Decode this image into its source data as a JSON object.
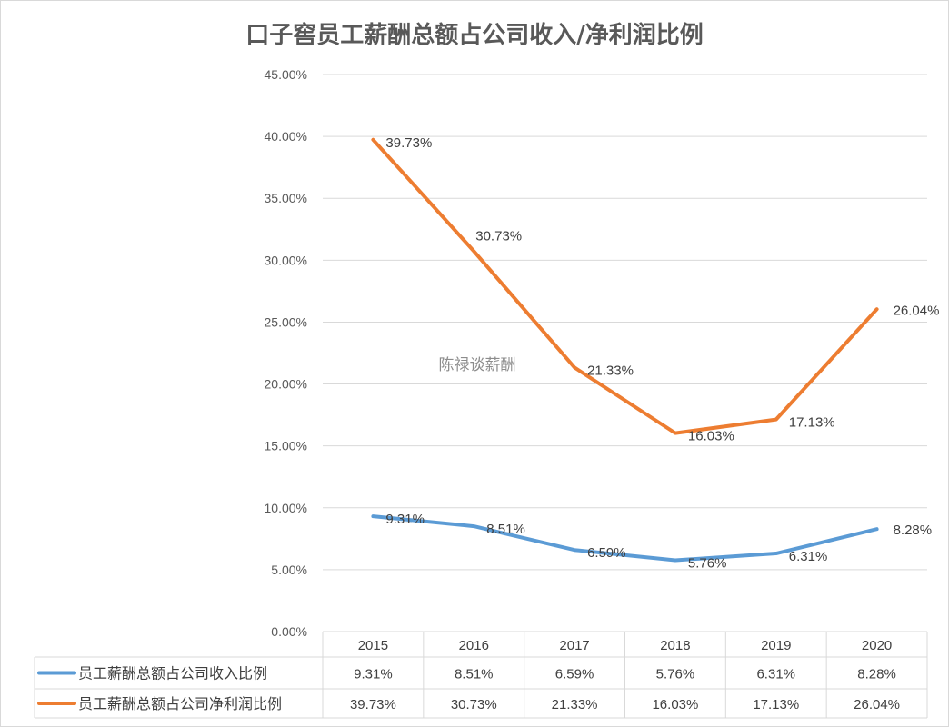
{
  "chart_data": {
    "type": "line",
    "title": "口子窖员工薪酬总额占公司收入/净利润比例",
    "watermark": "陈禄谈薪酬",
    "categories": [
      "2015",
      "2016",
      "2017",
      "2018",
      "2019",
      "2020"
    ],
    "ylim": [
      0,
      45
    ],
    "yticks": [
      "0.00%",
      "5.00%",
      "10.00%",
      "15.00%",
      "20.00%",
      "25.00%",
      "30.00%",
      "35.00%",
      "40.00%",
      "45.00%"
    ],
    "grid": true,
    "legend": "data-table",
    "series": [
      {
        "name": "员工薪酬总额占公司收入比例",
        "color": "#5b9bd5",
        "values": [
          9.31,
          8.51,
          6.59,
          5.76,
          6.31,
          8.28
        ],
        "labels": [
          "9.31%",
          "8.51%",
          "6.59%",
          "5.76%",
          "6.31%",
          "8.28%"
        ]
      },
      {
        "name": "员工薪酬总额占公司净利润比例",
        "color": "#ed7d31",
        "values": [
          39.73,
          30.73,
          21.33,
          16.03,
          17.13,
          26.04
        ],
        "labels": [
          "39.73%",
          "30.73%",
          "21.33%",
          "16.03%",
          "17.13%",
          "26.04%"
        ]
      }
    ]
  }
}
